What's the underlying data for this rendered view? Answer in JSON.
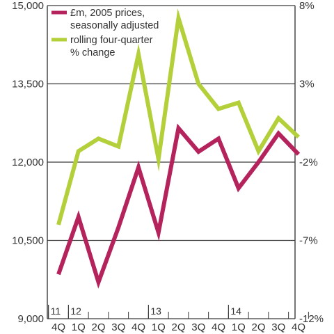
{
  "chart_data": {
    "type": "line",
    "title": "",
    "quarters": [
      "4Q",
      "1Q",
      "2Q",
      "3Q",
      "4Q",
      "1Q",
      "2Q",
      "3Q",
      "4Q",
      "1Q",
      "2Q",
      "3Q",
      "4Q"
    ],
    "years": [
      {
        "label": "11",
        "start_index": 0
      },
      {
        "label": "12",
        "start_index": 1
      },
      {
        "label": "13",
        "start_index": 5
      },
      {
        "label": "14",
        "start_index": 9
      }
    ],
    "left_axis": {
      "ylim": [
        9000,
        15000
      ],
      "ticks": [
        "9,000",
        "10,500",
        "12,000",
        "13,500",
        "15,000"
      ],
      "tick_values": [
        9000,
        10500,
        12000,
        13500,
        15000
      ]
    },
    "right_axis": {
      "ylim": [
        -12,
        8
      ],
      "ticks": [
        "-12%",
        "-7%",
        "-2%",
        "3%",
        "8%"
      ],
      "tick_values": [
        -12,
        -7,
        -2,
        3,
        8
      ]
    },
    "grid": true,
    "legend_position": "top-left",
    "series": [
      {
        "name": "£m, 2005 prices, seasonally adjusted",
        "axis": "left",
        "color": "#b5235d",
        "values": [
          9850,
          10950,
          9700,
          10750,
          11900,
          10650,
          12650,
          12200,
          12450,
          11500,
          12000,
          12550,
          12150
        ]
      },
      {
        "name": "rolling four-quarter % change",
        "axis": "right",
        "color": "#b3cf3a",
        "values": [
          -6.0,
          -1.3,
          -0.5,
          -1.0,
          4.9,
          -1.8,
          7.2,
          3.0,
          1.4,
          1.8,
          -1.3,
          0.8,
          -0.4
        ]
      }
    ]
  }
}
